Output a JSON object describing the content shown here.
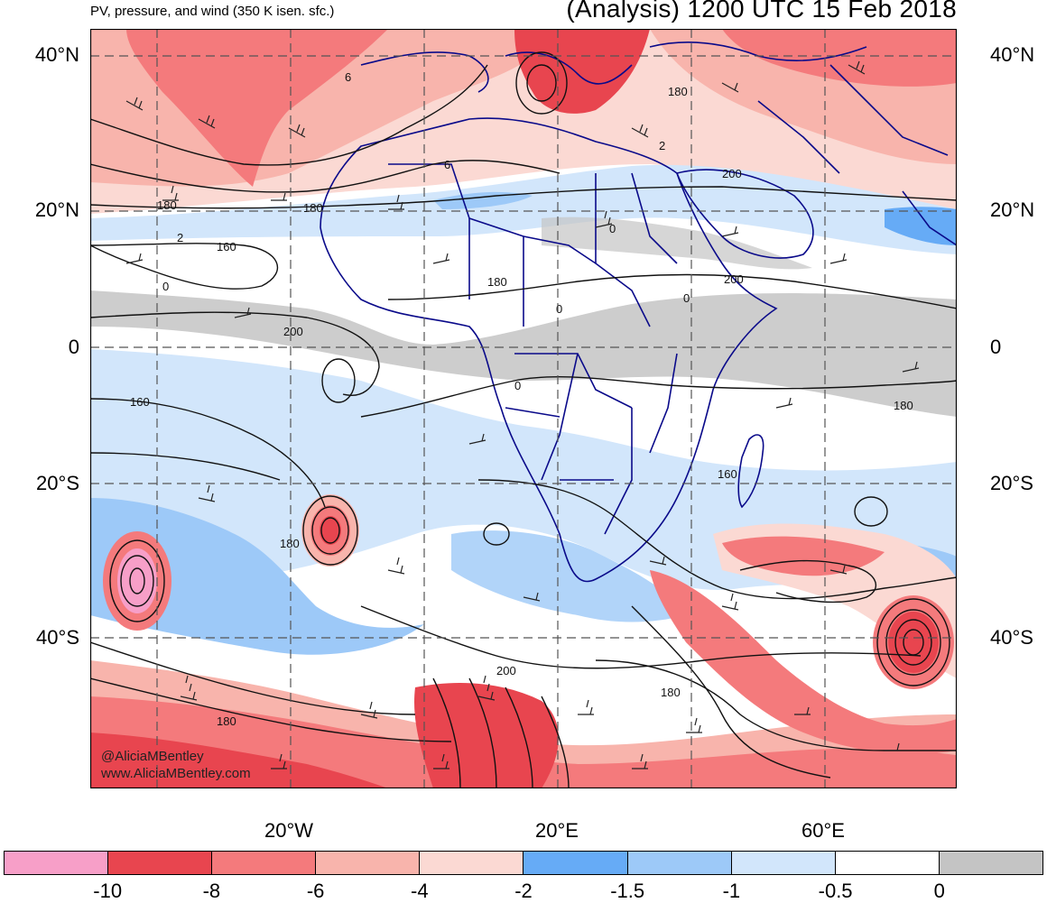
{
  "header": {
    "left_title": "PV, pressure, and wind (350 K isen. sfc.)",
    "right_title": "(Analysis) 1200 UTC 15 Feb 2018"
  },
  "axes": {
    "lat_labels": [
      "40°N",
      "20°N",
      "0",
      "20°S",
      "40°S"
    ],
    "lon_labels": [
      "20°W",
      "20°E",
      "60°E"
    ]
  },
  "contour_labels": [
    "6",
    "6",
    "180",
    "180",
    "2",
    "160",
    "0",
    "200",
    "0",
    "180",
    "0",
    "0",
    "200",
    "0",
    "200",
    "180",
    "160",
    "180",
    "160",
    "180",
    "200",
    "180",
    "180",
    "2"
  ],
  "watermark": {
    "line1": "@AliciaMBentley",
    "line2": "www.AliciaMBentley.com"
  },
  "colorbar": {
    "colors": [
      "#f79fc8",
      "#e8454f",
      "#f47a7c",
      "#f8b4ac",
      "#fbd9d3",
      "#66abf6",
      "#9dc9f8",
      "#d2e6fb",
      "#ffffff",
      "#c4c4c4"
    ],
    "labels": [
      "-10",
      "-8",
      "-6",
      "-4",
      "-2",
      "-1.5",
      "-1",
      "-0.5",
      "0"
    ]
  },
  "map_colors": {
    "land_border": "#0a0a8a",
    "contour": "#111111",
    "barb": "#222222",
    "grid": "#555555"
  }
}
